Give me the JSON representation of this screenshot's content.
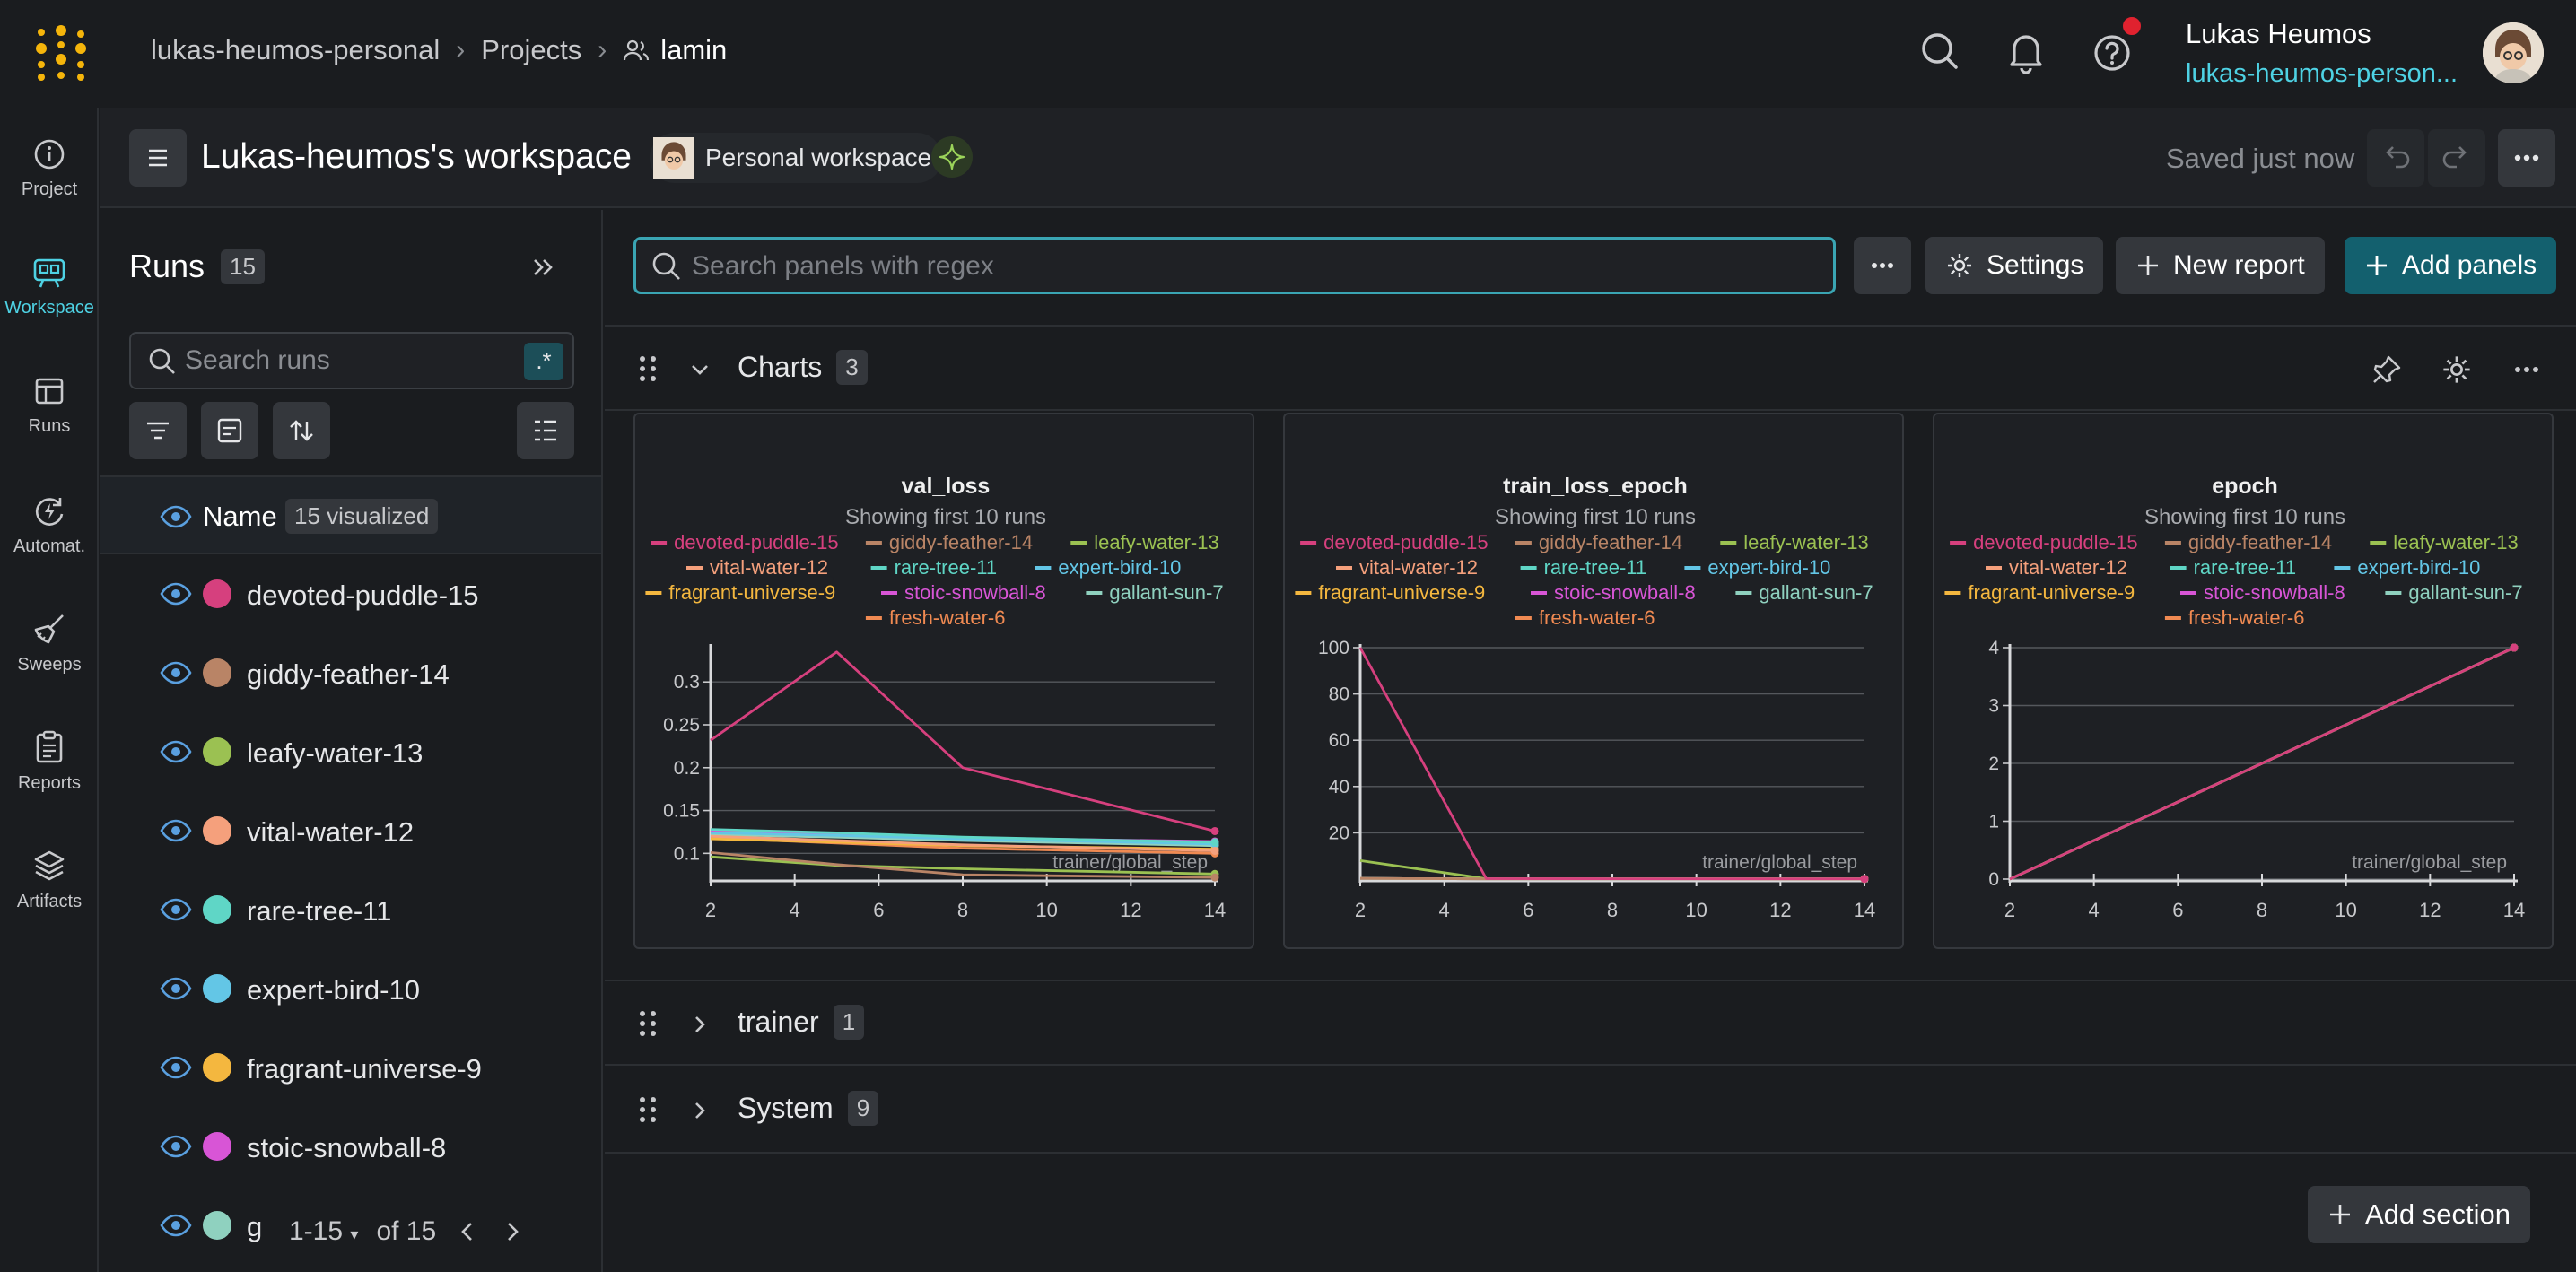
{
  "header": {
    "breadcrumb": [
      "lukas-heumos-personal",
      "Projects",
      "lamin"
    ],
    "user_name": "Lukas Heumos",
    "user_team": "lukas-heumos-person..."
  },
  "nav": [
    {
      "label": "Project",
      "icon": "info-icon"
    },
    {
      "label": "Workspace",
      "icon": "workspace-icon",
      "active": true
    },
    {
      "label": "Runs",
      "icon": "table-icon"
    },
    {
      "label": "Automat.",
      "icon": "automation-icon"
    },
    {
      "label": "Sweeps",
      "icon": "broom-icon"
    },
    {
      "label": "Reports",
      "icon": "clipboard-icon"
    },
    {
      "label": "Artifacts",
      "icon": "layers-icon"
    }
  ],
  "workspace": {
    "title": "Lukas-heumos's workspace",
    "chip": "Personal workspace",
    "saved": "Saved just now"
  },
  "runs": {
    "title": "Runs",
    "count": "15",
    "search_placeholder": "Search runs",
    "regex": ".*",
    "name_header": "Name",
    "visualized": "15 visualized",
    "items": [
      {
        "name": "devoted-puddle-15",
        "color": "#d6407e"
      },
      {
        "name": "giddy-feather-14",
        "color": "#b98466"
      },
      {
        "name": "leafy-water-13",
        "color": "#9bc152"
      },
      {
        "name": "vital-water-12",
        "color": "#f5a07c"
      },
      {
        "name": "rare-tree-11",
        "color": "#5fd6c6"
      },
      {
        "name": "expert-bird-10",
        "color": "#63c6e6"
      },
      {
        "name": "fragrant-universe-9",
        "color": "#f4b73f"
      },
      {
        "name": "stoic-snowball-8",
        "color": "#d855d6"
      },
      {
        "name": "g",
        "color": "#8fd1bf"
      }
    ],
    "pagination": {
      "range": "1-15",
      "of": "of 15"
    }
  },
  "toolbar": {
    "search_placeholder": "Search panels with regex",
    "settings": "Settings",
    "new_report": "New report",
    "add_panels": "Add panels"
  },
  "sections": [
    {
      "name": "Charts",
      "count": "3"
    },
    {
      "name": "trainer",
      "count": "1"
    },
    {
      "name": "System",
      "count": "9"
    }
  ],
  "add_section": "Add section",
  "chart_data": [
    {
      "type": "line",
      "title": "val_loss",
      "subtitle": "Showing first 10 runs",
      "xlabel": "trainer/global_step",
      "xlim": [
        2,
        14
      ],
      "ylim": [
        0.07,
        0.34
      ],
      "xticks": [
        2,
        4,
        6,
        8,
        10,
        12,
        14
      ],
      "yticks": [
        0.1,
        0.15,
        0.2,
        0.25,
        0.3
      ],
      "yticklabels": [
        "0.1",
        "0.15",
        "0.2",
        "0.25",
        "0.3"
      ],
      "series": [
        {
          "name": "devoted-puddle-15",
          "color": "#d6407e",
          "x": [
            2,
            5,
            8,
            14
          ],
          "y": [
            0.232,
            0.335,
            0.2,
            0.126
          ]
        },
        {
          "name": "giddy-feather-14",
          "color": "#b98466",
          "x": [
            2,
            5,
            8,
            14
          ],
          "y": [
            0.101,
            0.087,
            0.075,
            0.072
          ]
        },
        {
          "name": "leafy-water-13",
          "color": "#9bc152",
          "x": [
            2,
            5,
            8,
            14
          ],
          "y": [
            0.096,
            0.086,
            0.082,
            0.076
          ]
        },
        {
          "name": "vital-water-12",
          "color": "#f5a07c",
          "x": [
            2,
            5,
            8,
            14
          ],
          "y": [
            0.12,
            0.115,
            0.11,
            0.103
          ]
        },
        {
          "name": "rare-tree-11",
          "color": "#5fd6c6",
          "x": [
            2,
            5,
            8,
            14
          ],
          "y": [
            0.128,
            0.124,
            0.119,
            0.113
          ]
        },
        {
          "name": "expert-bird-10",
          "color": "#63c6e6",
          "x": [
            2,
            5,
            8,
            14
          ],
          "y": [
            0.124,
            0.121,
            0.117,
            0.111
          ]
        },
        {
          "name": "fragrant-universe-9",
          "color": "#f4b73f",
          "x": [
            2,
            5,
            8,
            14
          ],
          "y": [
            0.117,
            0.113,
            0.109,
            0.105
          ]
        },
        {
          "name": "stoic-snowball-8",
          "color": "#d855d6",
          "x": [
            2,
            5,
            8,
            14
          ],
          "y": [
            0.126,
            0.122,
            0.118,
            0.114
          ]
        },
        {
          "name": "gallant-sun-7",
          "color": "#8fd1bf",
          "x": [
            2,
            5,
            8,
            14
          ],
          "y": [
            0.122,
            0.119,
            0.115,
            0.109
          ]
        },
        {
          "name": "fresh-water-6",
          "color": "#f08a52",
          "x": [
            2,
            5,
            8,
            14
          ],
          "y": [
            0.118,
            0.112,
            0.106,
            0.1
          ]
        }
      ]
    },
    {
      "type": "line",
      "title": "train_loss_epoch",
      "subtitle": "Showing first 10 runs",
      "xlabel": "trainer/global_step",
      "xlim": [
        2,
        14
      ],
      "ylim": [
        0,
        100
      ],
      "xticks": [
        2,
        4,
        6,
        8,
        10,
        12,
        14
      ],
      "yticks": [
        20,
        40,
        60,
        80,
        100
      ],
      "yticklabels": [
        "20",
        "40",
        "60",
        "80",
        "100"
      ],
      "series": [
        {
          "name": "devoted-puddle-15",
          "color": "#d6407e",
          "x": [
            2,
            5,
            8,
            11,
            14
          ],
          "y": [
            100,
            0.2,
            0.15,
            0.12,
            0.1
          ]
        },
        {
          "name": "giddy-feather-14",
          "color": "#b98466",
          "x": [
            2,
            5,
            14
          ],
          "y": [
            0.3,
            0.1,
            0.08
          ]
        },
        {
          "name": "leafy-water-13",
          "color": "#9bc152",
          "x": [
            2,
            5,
            14
          ],
          "y": [
            8,
            0.15,
            0.1
          ]
        },
        {
          "name": "vital-water-12",
          "color": "#f5a07c",
          "x": [
            2,
            5,
            14
          ],
          "y": [
            0.3,
            0.1,
            0.08
          ]
        },
        {
          "name": "rare-tree-11",
          "color": "#5fd6c6",
          "x": [
            2,
            5,
            14
          ],
          "y": [
            0.3,
            0.1,
            0.08
          ]
        },
        {
          "name": "expert-bird-10",
          "color": "#63c6e6",
          "x": [
            2,
            5,
            14
          ],
          "y": [
            0.3,
            0.1,
            0.08
          ]
        },
        {
          "name": "fragrant-universe-9",
          "color": "#f4b73f",
          "x": [
            2,
            5,
            14
          ],
          "y": [
            0.3,
            0.1,
            0.08
          ]
        },
        {
          "name": "stoic-snowball-8",
          "color": "#d855d6",
          "x": [
            2,
            5,
            14
          ],
          "y": [
            0.3,
            0.1,
            0.08
          ]
        },
        {
          "name": "gallant-sun-7",
          "color": "#8fd1bf",
          "x": [
            2,
            5,
            14
          ],
          "y": [
            0.3,
            0.1,
            0.08
          ]
        },
        {
          "name": "fresh-water-6",
          "color": "#f08a52",
          "x": [
            2,
            5,
            14
          ],
          "y": [
            0.3,
            0.1,
            0.08
          ]
        }
      ]
    },
    {
      "type": "line",
      "title": "epoch",
      "subtitle": "Showing first 10 runs",
      "xlabel": "trainer/global_step",
      "xlim": [
        2,
        14
      ],
      "ylim": [
        0,
        4
      ],
      "xticks": [
        2,
        4,
        6,
        8,
        10,
        12,
        14
      ],
      "yticks": [
        0,
        1,
        2,
        3,
        4
      ],
      "yticklabels": [
        "0",
        "1",
        "2",
        "3",
        "4"
      ],
      "series": [
        {
          "name": "devoted-puddle-15",
          "color": "#d6407e",
          "x": [
            2,
            14
          ],
          "y": [
            0,
            4
          ]
        },
        {
          "name": "giddy-feather-14",
          "color": "#b98466",
          "x": [
            2,
            14
          ],
          "y": [
            0,
            4
          ]
        },
        {
          "name": "leafy-water-13",
          "color": "#9bc152",
          "x": [
            2,
            14
          ],
          "y": [
            0,
            4
          ]
        },
        {
          "name": "vital-water-12",
          "color": "#f5a07c",
          "x": [
            2,
            14
          ],
          "y": [
            0,
            4
          ]
        },
        {
          "name": "rare-tree-11",
          "color": "#5fd6c6",
          "x": [
            2,
            14
          ],
          "y": [
            0,
            4
          ]
        },
        {
          "name": "expert-bird-10",
          "color": "#63c6e6",
          "x": [
            2,
            14
          ],
          "y": [
            0,
            4
          ]
        },
        {
          "name": "fragrant-universe-9",
          "color": "#f4b73f",
          "x": [
            2,
            14
          ],
          "y": [
            0,
            4
          ]
        },
        {
          "name": "stoic-snowball-8",
          "color": "#d855d6",
          "x": [
            2,
            14
          ],
          "y": [
            0,
            4
          ]
        },
        {
          "name": "gallant-sun-7",
          "color": "#8fd1bf",
          "x": [
            2,
            14
          ],
          "y": [
            0,
            4
          ]
        },
        {
          "name": "fresh-water-6",
          "color": "#f08a52",
          "x": [
            2,
            14
          ],
          "y": [
            0,
            4
          ]
        }
      ]
    }
  ]
}
